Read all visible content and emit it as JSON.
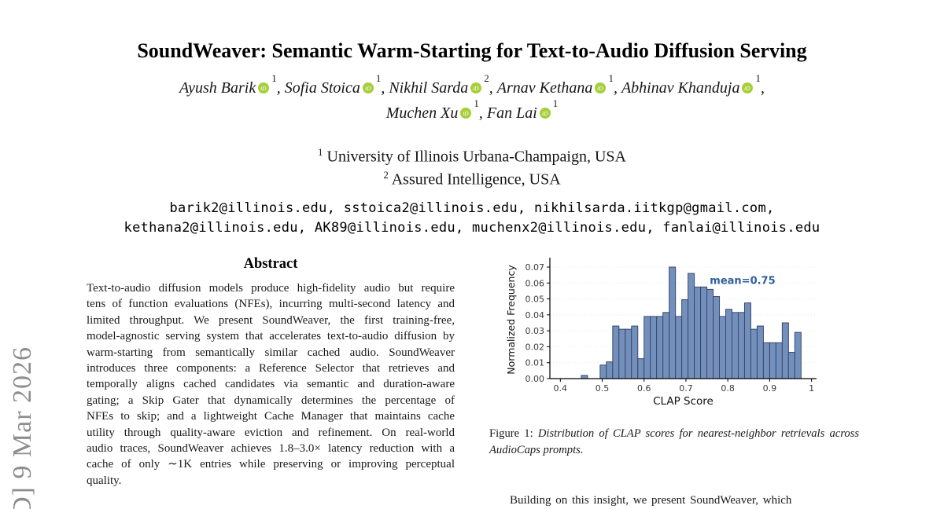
{
  "watermark": {
    "text": "D] 9 Mar 2026"
  },
  "header": {
    "title": "SoundWeaver: Semantic Warm-Starting for Text-to-Audio Diffusion Serving",
    "authors": [
      {
        "name": "Ayush Barik",
        "sup": "1",
        "sep": ", "
      },
      {
        "name": "Sofia Stoica",
        "sup": "1",
        "sep": ", "
      },
      {
        "name": "Nikhil Sarda",
        "sup": "2",
        "sep": ", "
      },
      {
        "name": "Arnav Kethana",
        "sup": "1",
        "sep": ", "
      },
      {
        "name": "Abhinav Khanduja",
        "sup": "1",
        "sep": ","
      },
      {
        "name": "Muchen Xu",
        "sup": "1",
        "sep": ", "
      },
      {
        "name": "Fan Lai",
        "sup": "1",
        "sep": ""
      }
    ],
    "orcid_color": "#a6ce39",
    "affiliations": [
      {
        "sup": "1",
        "text": "University of Illinois Urbana-Champaign, USA"
      },
      {
        "sup": "2",
        "text": "Assured Intelligence, USA"
      }
    ],
    "emails": [
      "barik2@illinois.edu, sstoica2@illinois.edu, nikhilsarda.iitkgp@gmail.com,",
      "kethana2@illinois.edu, AK89@illinois.edu, muchenx2@illinois.edu, fanlai@illinois.edu"
    ]
  },
  "abstract": {
    "heading": "Abstract",
    "text": "Text-to-audio diffusion models produce high-fidelity audio but require tens of function evaluations (NFEs), incurring multi-second latency and limited throughput. We present SoundWeaver, the first training-free, model-agnostic serving system that accelerates text-to-audio diffusion by warm-starting from semantically similar cached audio. SoundWeaver introduces three components: a Reference Selector that retrieves and temporally aligns cached candidates via semantic and duration-aware gating; a Skip Gater that dynamically determines the percentage of NFEs to skip; and a lightweight Cache Manager that maintains cache utility through quality-aware eviction and refinement. On real-world audio traces, SoundWeaver achieves 1.8–3.0× latency reduction with a cache of only ∼1K entries while preserving or improving perceptual quality."
  },
  "figure": {
    "caption_label": "Figure 1:",
    "caption_text": "Distribution of CLAP scores for nearest-neighbor retrievals across AudioCaps prompts."
  },
  "body": {
    "paragraph_text": "Building on this insight, we present SoundWeaver, which"
  },
  "chart_data": {
    "type": "bar",
    "subtype": "histogram",
    "title": "",
    "xlabel": "CLAP Score",
    "ylabel": "Normalized Frequency",
    "xlim": [
      0.375,
      1.012
    ],
    "ylim": [
      0,
      0.07
    ],
    "xticks": [
      0.4,
      0.5,
      0.6,
      0.7,
      0.8,
      0.9,
      1.0
    ],
    "yticks": [
      0.0,
      0.01,
      0.02,
      0.03,
      0.04,
      0.05,
      0.06,
      0.07
    ],
    "grid": true,
    "bin_start": 0.45,
    "bin_width": 0.015,
    "values": [
      0.002,
      0,
      0,
      0.0085,
      0.0105,
      0.033,
      0.031,
      0.031,
      0.033,
      0.0125,
      0.039,
      0.039,
      0.039,
      0.0415,
      0.07,
      0.039,
      0.0495,
      0.066,
      0.0575,
      0.0575,
      0.056,
      0.0515,
      0.039,
      0.0435,
      0.0415,
      0.0415,
      0.0475,
      0.031,
      0.033,
      0.0225,
      0.0225,
      0.0225,
      0.035,
      0.0165,
      0.029
    ],
    "annotation": {
      "text": "mean=0.75",
      "x": 0.757,
      "y": 0.0595
    },
    "colors": {
      "bar_fill": "#7390bd",
      "bar_edge": "#39486b",
      "annotation": "#2d5f9e",
      "grid": "#e8e8e8",
      "axis": "#000000",
      "tick_label": "#3a3a3a"
    }
  }
}
